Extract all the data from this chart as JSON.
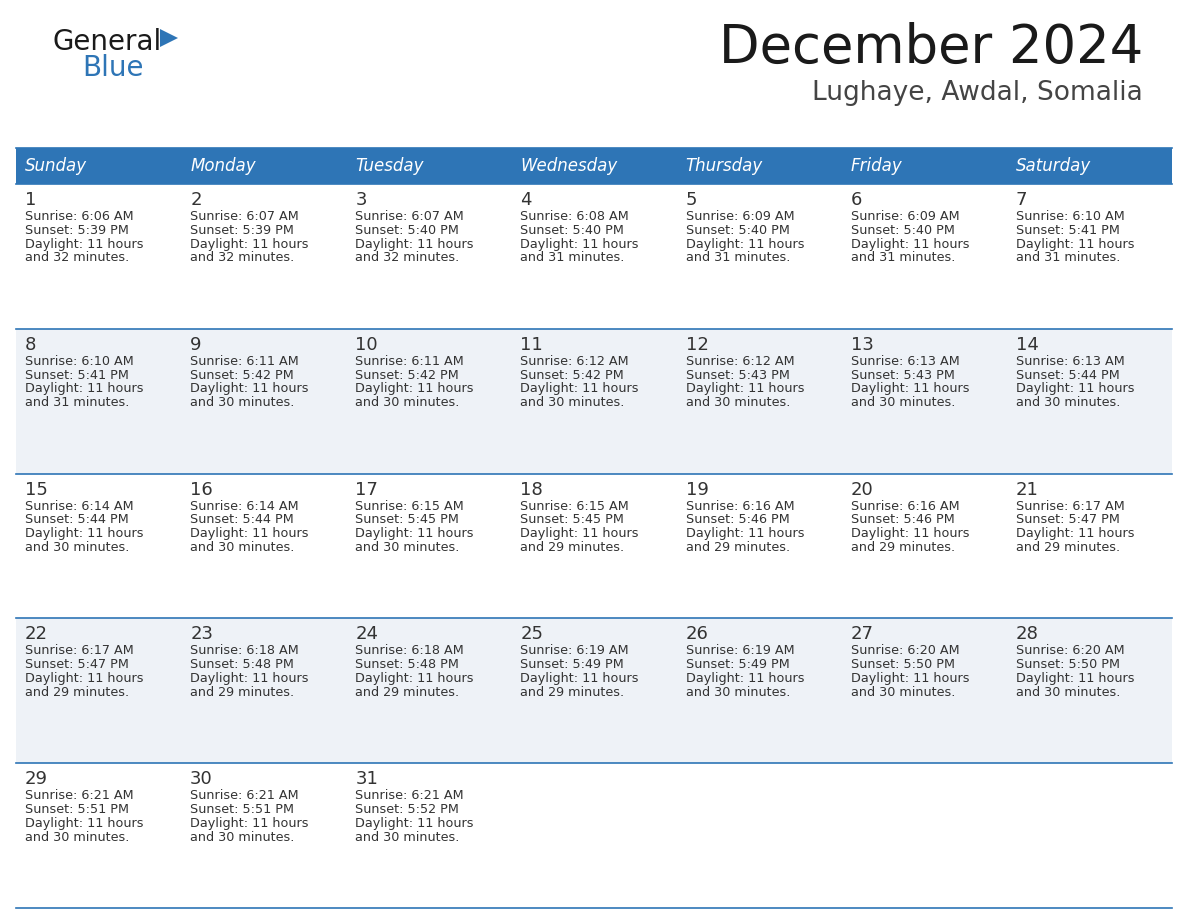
{
  "title": "December 2024",
  "subtitle": "Lughaye, Awdal, Somalia",
  "header_bg": "#2E75B6",
  "header_text_color": "#FFFFFF",
  "days_of_week": [
    "Sunday",
    "Monday",
    "Tuesday",
    "Wednesday",
    "Thursday",
    "Friday",
    "Saturday"
  ],
  "bg_color": "#FFFFFF",
  "cell_bg_even": "#FFFFFF",
  "cell_bg_odd": "#EEF2F7",
  "row_line_color": "#2E75B6",
  "text_color": "#333333",
  "calendar": [
    [
      {
        "day": 1,
        "sunrise": "6:06 AM",
        "sunset": "5:39 PM",
        "daylight": "11 hours and 32 minutes."
      },
      {
        "day": 2,
        "sunrise": "6:07 AM",
        "sunset": "5:39 PM",
        "daylight": "11 hours and 32 minutes."
      },
      {
        "day": 3,
        "sunrise": "6:07 AM",
        "sunset": "5:40 PM",
        "daylight": "11 hours and 32 minutes."
      },
      {
        "day": 4,
        "sunrise": "6:08 AM",
        "sunset": "5:40 PM",
        "daylight": "11 hours and 31 minutes."
      },
      {
        "day": 5,
        "sunrise": "6:09 AM",
        "sunset": "5:40 PM",
        "daylight": "11 hours and 31 minutes."
      },
      {
        "day": 6,
        "sunrise": "6:09 AM",
        "sunset": "5:40 PM",
        "daylight": "11 hours and 31 minutes."
      },
      {
        "day": 7,
        "sunrise": "6:10 AM",
        "sunset": "5:41 PM",
        "daylight": "11 hours and 31 minutes."
      }
    ],
    [
      {
        "day": 8,
        "sunrise": "6:10 AM",
        "sunset": "5:41 PM",
        "daylight": "11 hours and 31 minutes."
      },
      {
        "day": 9,
        "sunrise": "6:11 AM",
        "sunset": "5:42 PM",
        "daylight": "11 hours and 30 minutes."
      },
      {
        "day": 10,
        "sunrise": "6:11 AM",
        "sunset": "5:42 PM",
        "daylight": "11 hours and 30 minutes."
      },
      {
        "day": 11,
        "sunrise": "6:12 AM",
        "sunset": "5:42 PM",
        "daylight": "11 hours and 30 minutes."
      },
      {
        "day": 12,
        "sunrise": "6:12 AM",
        "sunset": "5:43 PM",
        "daylight": "11 hours and 30 minutes."
      },
      {
        "day": 13,
        "sunrise": "6:13 AM",
        "sunset": "5:43 PM",
        "daylight": "11 hours and 30 minutes."
      },
      {
        "day": 14,
        "sunrise": "6:13 AM",
        "sunset": "5:44 PM",
        "daylight": "11 hours and 30 minutes."
      }
    ],
    [
      {
        "day": 15,
        "sunrise": "6:14 AM",
        "sunset": "5:44 PM",
        "daylight": "11 hours and 30 minutes."
      },
      {
        "day": 16,
        "sunrise": "6:14 AM",
        "sunset": "5:44 PM",
        "daylight": "11 hours and 30 minutes."
      },
      {
        "day": 17,
        "sunrise": "6:15 AM",
        "sunset": "5:45 PM",
        "daylight": "11 hours and 30 minutes."
      },
      {
        "day": 18,
        "sunrise": "6:15 AM",
        "sunset": "5:45 PM",
        "daylight": "11 hours and 29 minutes."
      },
      {
        "day": 19,
        "sunrise": "6:16 AM",
        "sunset": "5:46 PM",
        "daylight": "11 hours and 29 minutes."
      },
      {
        "day": 20,
        "sunrise": "6:16 AM",
        "sunset": "5:46 PM",
        "daylight": "11 hours and 29 minutes."
      },
      {
        "day": 21,
        "sunrise": "6:17 AM",
        "sunset": "5:47 PM",
        "daylight": "11 hours and 29 minutes."
      }
    ],
    [
      {
        "day": 22,
        "sunrise": "6:17 AM",
        "sunset": "5:47 PM",
        "daylight": "11 hours and 29 minutes."
      },
      {
        "day": 23,
        "sunrise": "6:18 AM",
        "sunset": "5:48 PM",
        "daylight": "11 hours and 29 minutes."
      },
      {
        "day": 24,
        "sunrise": "6:18 AM",
        "sunset": "5:48 PM",
        "daylight": "11 hours and 29 minutes."
      },
      {
        "day": 25,
        "sunrise": "6:19 AM",
        "sunset": "5:49 PM",
        "daylight": "11 hours and 29 minutes."
      },
      {
        "day": 26,
        "sunrise": "6:19 AM",
        "sunset": "5:49 PM",
        "daylight": "11 hours and 30 minutes."
      },
      {
        "day": 27,
        "sunrise": "6:20 AM",
        "sunset": "5:50 PM",
        "daylight": "11 hours and 30 minutes."
      },
      {
        "day": 28,
        "sunrise": "6:20 AM",
        "sunset": "5:50 PM",
        "daylight": "11 hours and 30 minutes."
      }
    ],
    [
      {
        "day": 29,
        "sunrise": "6:21 AM",
        "sunset": "5:51 PM",
        "daylight": "11 hours and 30 minutes."
      },
      {
        "day": 30,
        "sunrise": "6:21 AM",
        "sunset": "5:51 PM",
        "daylight": "11 hours and 30 minutes."
      },
      {
        "day": 31,
        "sunrise": "6:21 AM",
        "sunset": "5:52 PM",
        "daylight": "11 hours and 30 minutes."
      },
      null,
      null,
      null,
      null
    ]
  ],
  "title_fontsize": 38,
  "subtitle_fontsize": 19,
  "header_fontsize": 12,
  "day_num_fontsize": 13,
  "cell_fontsize": 9.2,
  "logo_general_fontsize": 20,
  "logo_blue_fontsize": 20
}
